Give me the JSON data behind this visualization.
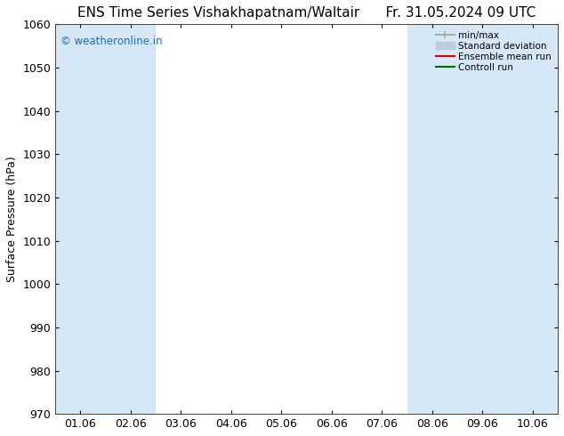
{
  "title_left": "ENS Time Series Vishakhapatnam/Waltair",
  "title_right": "Fr. 31.05.2024 09 UTC",
  "ylabel": "Surface Pressure (hPa)",
  "ylim": [
    970,
    1060
  ],
  "yticks": [
    970,
    980,
    990,
    1000,
    1010,
    1020,
    1030,
    1040,
    1050,
    1060
  ],
  "x_labels": [
    "01.06",
    "02.06",
    "03.06",
    "04.06",
    "05.06",
    "06.06",
    "07.06",
    "08.06",
    "09.06",
    "10.06"
  ],
  "watermark": "© weatheronline.in",
  "watermark_color": "#1a6cc9",
  "shade_color": "#d6e8f7",
  "background_color": "#ffffff",
  "legend_items": [
    {
      "label": "min/max",
      "color": "#aaaaaa",
      "lw": 1.5,
      "style": "line_with_caps"
    },
    {
      "label": "Standard deviation",
      "color": "#bbccdd",
      "lw": 8,
      "style": "bar"
    },
    {
      "label": "Ensemble mean run",
      "color": "#dd0000",
      "lw": 1.5,
      "style": "line"
    },
    {
      "label": "Controll run",
      "color": "#006600",
      "lw": 1.5,
      "style": "line"
    }
  ],
  "title_fontsize": 11,
  "axis_fontsize": 9,
  "tick_fontsize": 9,
  "shaded_x_indices": [
    0,
    1,
    7,
    8,
    9
  ]
}
